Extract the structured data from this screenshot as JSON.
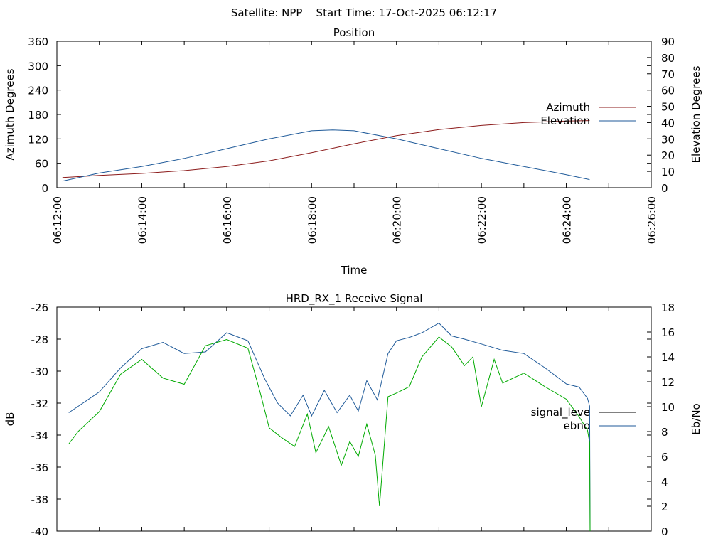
{
  "page_title": "Satellite: NPP    Start Time: 17-Oct-2025 06:12:17",
  "chart_data": [
    {
      "type": "line",
      "title": "Position",
      "xlabel": "Time",
      "x_ticks": [
        "06:12:00",
        "06:14:00",
        "06:16:00",
        "06:18:00",
        "06:20:00",
        "06:22:00",
        "06:24:00",
        "06:26:00"
      ],
      "x_tick_values": [
        0,
        2,
        4,
        6,
        8,
        10,
        12,
        14
      ],
      "x_range_minutes": [
        0,
        14
      ],
      "y_left": {
        "label": "Azimuth Degrees",
        "range": [
          0,
          360
        ],
        "ticks": [
          "0",
          "60",
          "120",
          "180",
          "240",
          "300",
          "360"
        ],
        "tick_values": [
          0,
          60,
          120,
          180,
          240,
          300,
          360
        ]
      },
      "y_right": {
        "label": "Elevation Degrees",
        "range": [
          0,
          90
        ],
        "ticks": [
          "0",
          "10",
          "20",
          "30",
          "40",
          "50",
          "60",
          "70",
          "80",
          "90"
        ],
        "tick_values": [
          0,
          10,
          20,
          30,
          40,
          50,
          60,
          70,
          80,
          90
        ]
      },
      "legend_position": "right",
      "series": [
        {
          "name": "Azimuth",
          "axis": "left",
          "color": "#8b1a1a",
          "x": [
            0.13,
            1,
            2,
            3,
            4,
            5,
            6,
            7,
            8,
            9,
            10,
            11,
            12,
            12.55
          ],
          "values": [
            25,
            30,
            35,
            42,
            52,
            66,
            86,
            108,
            128,
            143,
            153,
            160,
            164,
            165
          ]
        },
        {
          "name": "Elevation",
          "axis": "right",
          "color": "#1f5a99",
          "x": [
            0.13,
            1,
            2,
            3,
            4,
            5,
            6,
            6.5,
            7,
            8,
            9,
            10,
            11,
            12,
            12.55
          ],
          "values": [
            4,
            9,
            13,
            18,
            24,
            30,
            35,
            35.5,
            35,
            30,
            24,
            18,
            13,
            8,
            5
          ]
        }
      ]
    },
    {
      "type": "line",
      "title": "HRD_RX_1 Receive Signal",
      "x_range_minutes": [
        0,
        14
      ],
      "y_left": {
        "label": "dB",
        "range": [
          -40,
          -26
        ],
        "ticks": [
          "-26",
          "-28",
          "-30",
          "-32",
          "-34",
          "-36",
          "-38",
          "-40"
        ],
        "tick_values": [
          -26,
          -28,
          -30,
          -32,
          -34,
          -36,
          -38,
          -40
        ]
      },
      "y_right": {
        "label": "Eb/No",
        "range": [
          0,
          18
        ],
        "ticks": [
          "0",
          "2",
          "4",
          "6",
          "8",
          "10",
          "12",
          "14",
          "16",
          "18"
        ],
        "tick_values": [
          0,
          2,
          4,
          6,
          8,
          10,
          12,
          14,
          16,
          18
        ]
      },
      "legend_position": "right",
      "series": [
        {
          "name": "signal_leve",
          "legend_color": "#000000",
          "axis": "left",
          "color": "#1f5a99",
          "x": [
            0.28,
            0.5,
            1,
            1.5,
            2,
            2.5,
            3,
            3.5,
            4,
            4.5,
            4.9,
            5.2,
            5.5,
            5.8,
            6,
            6.3,
            6.6,
            6.9,
            7.1,
            7.3,
            7.55,
            7.8,
            8,
            8.3,
            8.6,
            9,
            9.3,
            9.6,
            10,
            10.5,
            11,
            11.5,
            12,
            12.3,
            12.5,
            12.55,
            12.56
          ],
          "values": [
            -32.6,
            -32.2,
            -31.3,
            -29.8,
            -28.6,
            -28.2,
            -28.9,
            -28.8,
            -27.6,
            -28.1,
            -30.5,
            -32.0,
            -32.8,
            -31.5,
            -32.8,
            -31.2,
            -32.6,
            -31.5,
            -32.5,
            -30.6,
            -31.8,
            -28.9,
            -28.1,
            -27.9,
            -27.6,
            -27.0,
            -27.8,
            -28.0,
            -28.3,
            -28.7,
            -28.9,
            -29.8,
            -30.8,
            -31.0,
            -31.7,
            -32.2,
            -40.0
          ]
        },
        {
          "name": "ebno",
          "legend_color": "#1f5a99",
          "axis": "right",
          "color": "#00aa00",
          "x": [
            0.28,
            0.5,
            1,
            1.5,
            2,
            2.5,
            3,
            3.5,
            4,
            4.5,
            4.8,
            5,
            5.3,
            5.6,
            5.9,
            6.1,
            6.4,
            6.7,
            6.9,
            7.1,
            7.3,
            7.5,
            7.6,
            7.8,
            8,
            8.3,
            8.6,
            9,
            9.3,
            9.6,
            9.8,
            10,
            10.3,
            10.5,
            11,
            11.5,
            12,
            12.3,
            12.5,
            12.55,
            12.56
          ],
          "values": [
            7.0,
            8.0,
            9.6,
            12.6,
            13.8,
            12.3,
            11.8,
            14.9,
            15.4,
            14.7,
            11.0,
            8.3,
            7.5,
            6.8,
            9.4,
            6.3,
            8.4,
            5.3,
            7.2,
            6.0,
            8.6,
            6.1,
            2.0,
            10.8,
            11.1,
            11.6,
            14.0,
            15.6,
            14.8,
            13.3,
            14.0,
            10.0,
            13.8,
            11.9,
            12.7,
            11.6,
            10.6,
            9.2,
            8.1,
            7.1,
            0.0
          ]
        }
      ]
    }
  ]
}
